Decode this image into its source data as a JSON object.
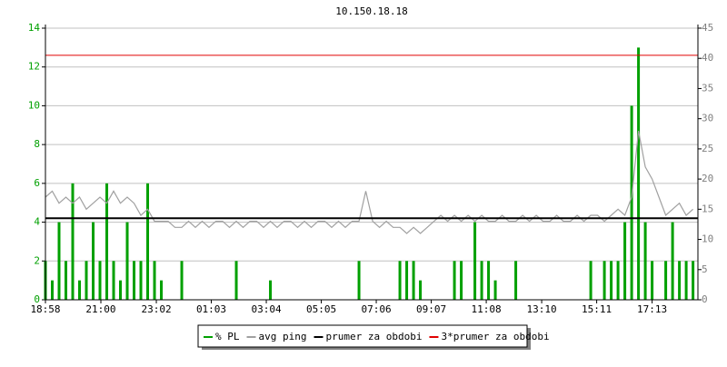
{
  "chart_data": {
    "type": "line",
    "title": "10.150.18.18",
    "x": [
      0,
      0.25,
      0.5,
      0.75,
      1,
      1.25,
      1.5,
      1.75,
      2,
      2.25,
      2.5,
      2.75,
      3,
      3.25,
      3.5,
      3.75,
      4,
      4.25,
      4.5,
      4.75,
      5,
      5.25,
      5.5,
      5.75,
      6,
      6.25,
      6.5,
      6.75,
      7,
      7.25,
      7.5,
      7.75,
      8,
      8.25,
      8.5,
      8.75,
      9,
      9.25,
      9.5,
      9.75,
      10,
      10.25,
      10.5,
      10.75,
      11,
      11.25,
      11.5,
      11.75,
      12,
      12.25,
      12.5,
      12.75,
      13,
      13.25,
      13.5,
      13.75,
      14,
      14.25,
      14.5,
      14.75,
      15,
      15.25,
      15.5,
      15.75,
      16,
      16.25,
      16.5,
      16.75,
      17,
      17.25,
      17.5,
      17.75,
      18,
      18.25,
      18.5,
      18.75,
      19,
      19.25,
      19.5,
      19.75,
      20,
      20.25,
      20.5,
      20.75,
      21,
      21.25,
      21.5,
      21.75,
      22,
      22.25,
      22.5,
      22.75,
      23,
      23.25,
      23.5,
      23.75
    ],
    "series": [
      {
        "name": "% PL",
        "color": "#00a000",
        "style": "bar",
        "axis": "y",
        "values": [
          2,
          1,
          4,
          2,
          6,
          1,
          2,
          4,
          2,
          6,
          2,
          1,
          4,
          2,
          2,
          6,
          2,
          1,
          0,
          0,
          2,
          0,
          0,
          0,
          0,
          0,
          0,
          0,
          2,
          0,
          0,
          0,
          0,
          1,
          0,
          0,
          0,
          0,
          0,
          0,
          0,
          0,
          0,
          0,
          0,
          0,
          2,
          0,
          0,
          0,
          0,
          0,
          2,
          2,
          2,
          1,
          0,
          0,
          0,
          0,
          2,
          2,
          0,
          4,
          2,
          2,
          1,
          0,
          0,
          2,
          0,
          0,
          0,
          0,
          0,
          0,
          0,
          0,
          0,
          0,
          2,
          0,
          2,
          2,
          2,
          4,
          10,
          13,
          4,
          2,
          0,
          2,
          4,
          2,
          2,
          2
        ]
      },
      {
        "name": "avg ping",
        "color": "#a0a0a0",
        "style": "line",
        "axis": "y2",
        "values": [
          17,
          18,
          16,
          17,
          16,
          17,
          15,
          16,
          17,
          16,
          18,
          16,
          17,
          16,
          14,
          15,
          13,
          13,
          13,
          12,
          12,
          13,
          12,
          13,
          12,
          13,
          13,
          12,
          13,
          12,
          13,
          13,
          12,
          13,
          12,
          13,
          13,
          12,
          13,
          12,
          13,
          13,
          12,
          13,
          12,
          13,
          13,
          18,
          13,
          12,
          13,
          12,
          12,
          11,
          12,
          11,
          12,
          13,
          14,
          13,
          14,
          13,
          14,
          13,
          14,
          13,
          13,
          14,
          13,
          13,
          14,
          13,
          14,
          13,
          13,
          14,
          13,
          13,
          14,
          13,
          14,
          14,
          13,
          14,
          15,
          14,
          17,
          28,
          22,
          20,
          17,
          14,
          15,
          16,
          14,
          15
        ]
      },
      {
        "name": "prumer za obdobi",
        "color": "#000000",
        "style": "hline",
        "axis": "y2",
        "value": 13.5
      },
      {
        "name": "3*prumer za obdobi",
        "color": "#e00000",
        "style": "hline",
        "axis": "y2",
        "value": 40.5
      }
    ],
    "xlim": [
      0,
      23.93
    ],
    "xticks": [
      {
        "value": 0,
        "label": "18:58"
      },
      {
        "value": 2.033,
        "label": "21:00"
      },
      {
        "value": 4.067,
        "label": "23:02"
      },
      {
        "value": 6.083,
        "label": "01:03"
      },
      {
        "value": 8.1,
        "label": "03:04"
      },
      {
        "value": 10.117,
        "label": "05:05"
      },
      {
        "value": 12.133,
        "label": "07:06"
      },
      {
        "value": 14.15,
        "label": "09:07"
      },
      {
        "value": 16.167,
        "label": "11:08"
      },
      {
        "value": 18.2,
        "label": "13:10"
      },
      {
        "value": 20.217,
        "label": "15:11"
      },
      {
        "value": 22.25,
        "label": "17:13"
      }
    ],
    "ylim": [
      0,
      14
    ],
    "yticks": [
      0,
      2,
      4,
      6,
      8,
      10,
      12,
      14
    ],
    "ytick_color": "#00a000",
    "y2lim": [
      0,
      45
    ],
    "y2ticks": [
      0,
      5,
      10,
      15,
      20,
      25,
      30,
      35,
      40,
      45
    ],
    "y2tick_color": "#808080",
    "grid": true
  }
}
